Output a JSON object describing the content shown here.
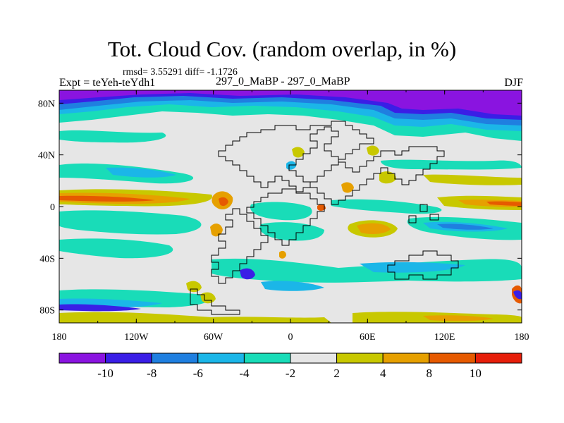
{
  "title": "Tot. Cloud Cov. (random overlap, in %)",
  "stats": "rmsd= 3.55291 diff= -1.1726",
  "experiment": "Expt = teYeh-teYdh1",
  "comparison": "297_0_MaBP - 297_0_MaBP",
  "season": "DJF",
  "map": {
    "lon_ticks": [
      "180",
      "120W",
      "60W",
      "0",
      "60E",
      "120E",
      "180"
    ],
    "lat_ticks": [
      "80N",
      "40N",
      "0",
      "40S",
      "80S"
    ],
    "lat_values": [
      80,
      40,
      0,
      -40,
      -80
    ],
    "lat_range": [
      -90,
      90
    ]
  },
  "colorbar": {
    "labels": [
      "-10",
      "-8",
      "-6",
      "-4",
      "-2",
      "2",
      "4",
      "8",
      "10"
    ],
    "colors": [
      "#8a14e0",
      "#3a1ee6",
      "#1f7fe0",
      "#1bb6e8",
      "#19dcb8",
      "#e6e6e6",
      "#c8c800",
      "#e6a000",
      "#e65a00",
      "#e61e0a"
    ]
  },
  "palette": {
    "deep_purple": "#8a14e0",
    "blue": "#3a1ee6",
    "mid_blue": "#1f7fe0",
    "light_blue": "#1bb6e8",
    "cyan": "#19dcb8",
    "neutral": "#e6e6e6",
    "yellow": "#c8c800",
    "orange": "#e6a000",
    "dark_orange": "#e65a00",
    "red": "#e61e0a"
  }
}
